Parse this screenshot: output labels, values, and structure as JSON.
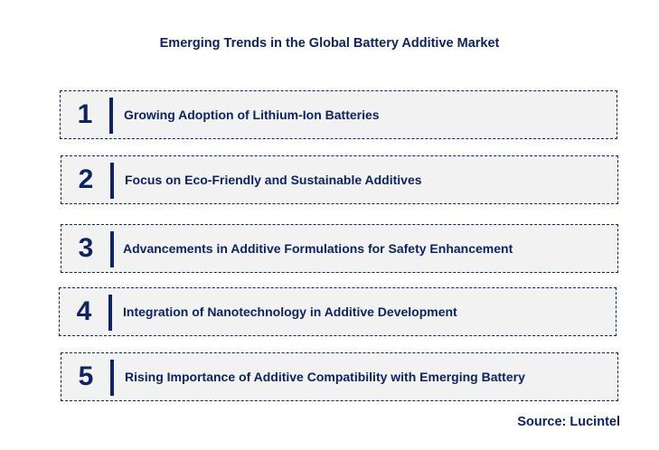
{
  "title": "Emerging Trends in the Global Battery Additive Market",
  "items": [
    {
      "number": "1",
      "text": "Growing Adoption of Lithium-Ion Batteries"
    },
    {
      "number": "2",
      "text": "Focus on Eco-Friendly and Sustainable Additives"
    },
    {
      "number": "3",
      "text": "Advancements in Additive Formulations for Safety Enhancement"
    },
    {
      "number": "4",
      "text": "Integration of Nanotechnology in Additive Development"
    },
    {
      "number": "5",
      "text": "Rising Importance of Additive Compatibility with Emerging Battery"
    }
  ],
  "source": "Source: Lucintel",
  "colors": {
    "accent": "#0d2461",
    "box_background": "#f2f2f2"
  }
}
